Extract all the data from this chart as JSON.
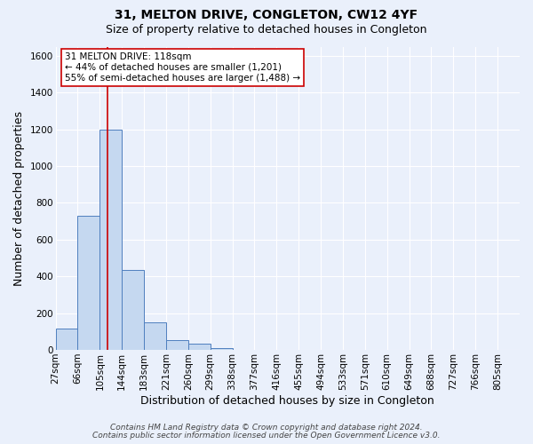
{
  "title": "31, MELTON DRIVE, CONGLETON, CW12 4YF",
  "subtitle": "Size of property relative to detached houses in Congleton",
  "xlabel": "Distribution of detached houses by size in Congleton",
  "ylabel": "Number of detached properties",
  "bin_labels": [
    "27sqm",
    "66sqm",
    "105sqm",
    "144sqm",
    "183sqm",
    "221sqm",
    "260sqm",
    "299sqm",
    "338sqm",
    "377sqm",
    "416sqm",
    "455sqm",
    "494sqm",
    "533sqm",
    "571sqm",
    "610sqm",
    "649sqm",
    "688sqm",
    "727sqm",
    "766sqm",
    "805sqm"
  ],
  "bar_heights": [
    115,
    730,
    1200,
    435,
    150,
    55,
    32,
    12,
    0,
    0,
    0,
    0,
    0,
    0,
    0,
    0,
    0,
    0,
    0,
    0,
    0
  ],
  "bar_color": "#c5d8f0",
  "bar_edgecolor": "#4f7fbf",
  "vline_bin": 2,
  "vline_color": "#cc0000",
  "annotation_text": "31 MELTON DRIVE: 118sqm\n← 44% of detached houses are smaller (1,201)\n55% of semi-detached houses are larger (1,488) →",
  "annotation_box_color": "#ffffff",
  "annotation_box_edgecolor": "#cc0000",
  "ylim": [
    0,
    1650
  ],
  "yticks": [
    0,
    200,
    400,
    600,
    800,
    1000,
    1200,
    1400,
    1600
  ],
  "background_color": "#eaf0fb",
  "grid_color": "#ffffff",
  "footer_line1": "Contains HM Land Registry data © Crown copyright and database right 2024.",
  "footer_line2": "Contains public sector information licensed under the Open Government Licence v3.0.",
  "title_fontsize": 10,
  "subtitle_fontsize": 9,
  "label_fontsize": 9,
  "tick_fontsize": 7.5,
  "footer_fontsize": 6.5,
  "annotation_fontsize": 7.5
}
